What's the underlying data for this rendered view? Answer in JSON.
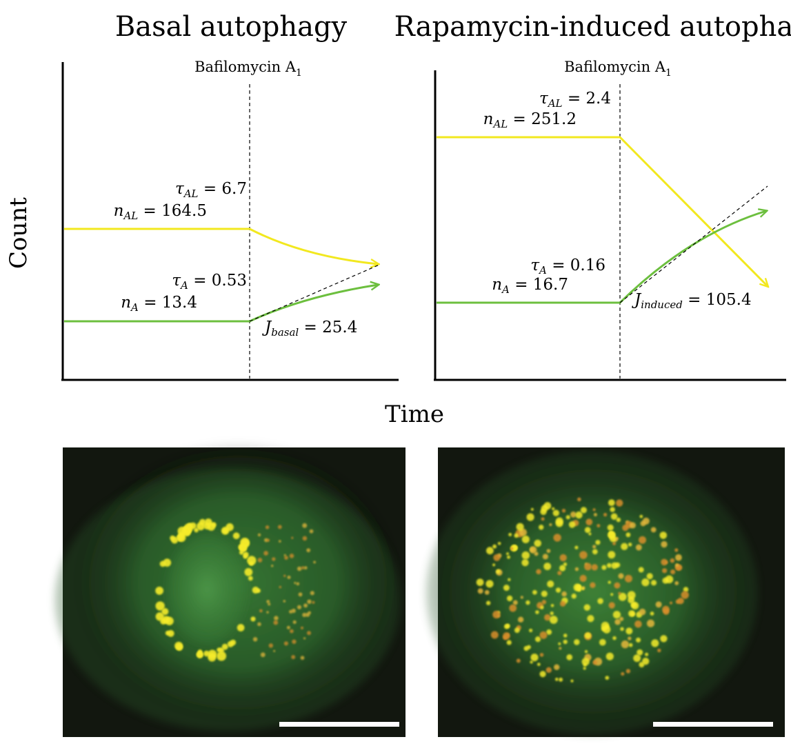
{
  "figure": {
    "shared_x_label": "Time",
    "shared_y_label": "Count",
    "marker_label": "Bafilomycin A",
    "marker_label_sub": "1",
    "colors": {
      "autolysosome_line": "#f2e81f",
      "autophagosome_line": "#6cbf3e",
      "marker_line": "#000000"
    }
  },
  "panels": {
    "basal": {
      "title": "Basal autophagy",
      "tau_AL": {
        "sym": "τ",
        "sub": "AL",
        "eq": " = 6.7"
      },
      "n_AL": {
        "sym": "n",
        "sub": "AL",
        "eq": " = 164.5"
      },
      "tau_A": {
        "sym": "τ",
        "sub": "A",
        "eq": " = 0.53"
      },
      "n_A": {
        "sym": "n",
        "sub": "A",
        "eq": " = 13.4"
      },
      "J": {
        "sym": "J",
        "sub": "basal",
        "eq": " = 25.4"
      }
    },
    "induced": {
      "title": "Rapamycin-induced autophagy",
      "tau_AL": {
        "sym": "τ",
        "sub": "AL",
        "eq": " = 2.4"
      },
      "n_AL": {
        "sym": "n",
        "sub": "AL",
        "eq": " = 251.2"
      },
      "tau_A": {
        "sym": "τ",
        "sub": "A",
        "eq": " = 0.16"
      },
      "n_A": {
        "sym": "n",
        "sub": "A",
        "eq": " = 16.7"
      },
      "J": {
        "sym": "J",
        "sub": "induced",
        "eq": " = 105.4"
      }
    }
  },
  "micrographs": {
    "background": "#12170f",
    "cell_color": "#3f8a3a",
    "puncta_colors": [
      "#f6ec2a",
      "#e6b83a",
      "#d98f2a"
    ],
    "scale_bar_color": "#ffffff"
  }
}
